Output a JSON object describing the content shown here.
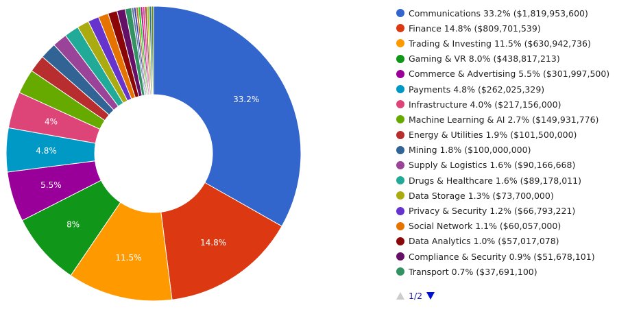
{
  "chart_data": {
    "type": "pie",
    "donut": true,
    "legend_position": "right",
    "slices": [
      {
        "name": "Communications",
        "percent": 33.2,
        "amount": "$1,819,953,600",
        "legend": "Communications 33.2% ($1,819,953,600)",
        "label": "33.2%",
        "color": "#3366cc"
      },
      {
        "name": "Finance",
        "percent": 14.8,
        "amount": "$809,701,539",
        "legend": "Finance 14.8% ($809,701,539)",
        "label": "14.8%",
        "color": "#dc3912"
      },
      {
        "name": "Trading & Investing",
        "percent": 11.5,
        "amount": "$630,942,736",
        "legend": "Trading & Investing 11.5% ($630,942,736)",
        "label": "11.5%",
        "color": "#ff9900"
      },
      {
        "name": "Gaming & VR",
        "percent": 8.0,
        "amount": "$438,817,213",
        "legend": "Gaming & VR 8.0% ($438,817,213)",
        "label": "8%",
        "color": "#109618"
      },
      {
        "name": "Commerce & Advertising",
        "percent": 5.5,
        "amount": "$301,997,500",
        "legend": "Commerce & Advertising 5.5% ($301,997,500)",
        "label": "5.5%",
        "color": "#990099"
      },
      {
        "name": "Payments",
        "percent": 4.8,
        "amount": "$262,025,329",
        "legend": "Payments 4.8% ($262,025,329)",
        "label": "4.8%",
        "color": "#0099c6"
      },
      {
        "name": "Infrastructure",
        "percent": 4.0,
        "amount": "$217,156,000",
        "legend": "Infrastructure 4.0% ($217,156,000)",
        "label": "4%",
        "color": "#dd4477"
      },
      {
        "name": "Machine Learning & AI",
        "percent": 2.7,
        "amount": "$149,931,776",
        "legend": "Machine Learning & AI 2.7% ($149,931,776)",
        "label": "",
        "color": "#66aa00"
      },
      {
        "name": "Energy & Utilities",
        "percent": 1.9,
        "amount": "$101,500,000",
        "legend": "Energy & Utilities 1.9% ($101,500,000)",
        "label": "",
        "color": "#b82e2e"
      },
      {
        "name": "Mining",
        "percent": 1.8,
        "amount": "$100,000,000",
        "legend": "Mining 1.8% ($100,000,000)",
        "label": "",
        "color": "#316395"
      },
      {
        "name": "Supply & Logistics",
        "percent": 1.6,
        "amount": "$90,166,668",
        "legend": "Supply & Logistics 1.6% ($90,166,668)",
        "label": "",
        "color": "#994499"
      },
      {
        "name": "Drugs & Healthcare",
        "percent": 1.6,
        "amount": "$89,178,011",
        "legend": "Drugs & Healthcare 1.6% ($89,178,011)",
        "label": "",
        "color": "#22aa99"
      },
      {
        "name": "Data Storage",
        "percent": 1.3,
        "amount": "$73,700,000",
        "legend": "Data Storage 1.3% ($73,700,000)",
        "label": "",
        "color": "#aaaa11"
      },
      {
        "name": "Privacy & Security",
        "percent": 1.2,
        "amount": "$66,793,221",
        "legend": "Privacy & Security 1.2% ($66,793,221)",
        "label": "",
        "color": "#6633cc"
      },
      {
        "name": "Social Network",
        "percent": 1.1,
        "amount": "$60,057,000",
        "legend": "Social Network 1.1% ($60,057,000)",
        "label": "",
        "color": "#e67300"
      },
      {
        "name": "Data Analytics",
        "percent": 1.0,
        "amount": "$57,017,078",
        "legend": "Data Analytics 1.0% ($57,017,078)",
        "label": "",
        "color": "#8b0707"
      },
      {
        "name": "Compliance & Security",
        "percent": 0.9,
        "amount": "$51,678,101",
        "legend": "Compliance & Security 0.9% ($51,678,101)",
        "label": "",
        "color": "#651067"
      },
      {
        "name": "Transport",
        "percent": 0.7,
        "amount": "$37,691,100",
        "legend": "Transport 0.7% ($37,691,100)",
        "label": "",
        "color": "#329262"
      }
    ],
    "other_slices_colors": [
      "#5574a6",
      "#3b3eac",
      "#b77322",
      "#16d620",
      "#b91383",
      "#f4359e",
      "#9c5935",
      "#a9c413",
      "#2a778d",
      "#668d1c"
    ]
  },
  "legend_pager": {
    "text": "1/2",
    "prev_icon": "triangle-up-icon",
    "next_icon": "triangle-down-icon"
  }
}
